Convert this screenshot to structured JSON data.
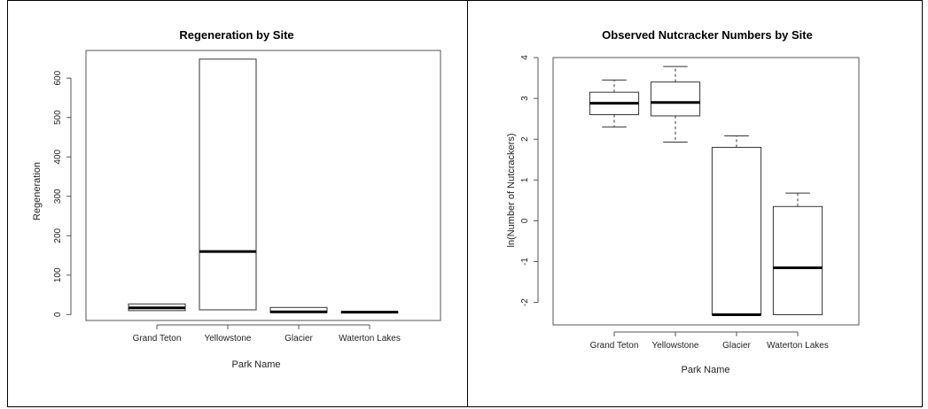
{
  "chart_data": [
    {
      "type": "boxplot",
      "title": "Regeneration by Site",
      "xlabel": "Park Name",
      "ylabel": "Regeneration",
      "ylim": [
        -15,
        670
      ],
      "yticks": [
        0,
        100,
        200,
        300,
        400,
        500,
        600
      ],
      "categories": [
        "Grand Teton",
        "Yellowstone",
        "Glacier",
        "Waterton Lakes"
      ],
      "boxes": [
        {
          "min": 10,
          "q1": 10,
          "median": 17,
          "q3": 27,
          "max": 27
        },
        {
          "min": 12,
          "q1": 12,
          "median": 160,
          "q3": 648,
          "max": 648
        },
        {
          "min": 5,
          "q1": 5,
          "median": 7,
          "q3": 18,
          "max": 18
        },
        {
          "min": 5,
          "q1": 5,
          "median": 6,
          "q3": 7,
          "max": 7
        }
      ]
    },
    {
      "type": "boxplot",
      "title": "Observed Nutcracker Numbers by Site",
      "xlabel": "Park Name",
      "ylabel": "ln(Number of Nutcrackers)",
      "ylim": [
        -2.55,
        4.0
      ],
      "yticks": [
        -2,
        -1,
        0,
        1,
        2,
        3,
        4
      ],
      "categories": [
        "Grand Teton",
        "Yellowstone",
        "Glacier",
        "Waterton Lakes"
      ],
      "boxes": [
        {
          "min": 2.3,
          "q1": 2.6,
          "median": 2.88,
          "q3": 3.15,
          "max": 3.45
        },
        {
          "min": 1.93,
          "q1": 2.57,
          "median": 2.9,
          "q3": 3.4,
          "max": 3.78
        },
        {
          "min": -2.3,
          "q1": -2.3,
          "median": -2.3,
          "q3": 1.8,
          "max": 2.08
        },
        {
          "min": -2.3,
          "q1": -2.3,
          "median": -1.15,
          "q3": 0.35,
          "max": 0.68
        }
      ]
    }
  ]
}
